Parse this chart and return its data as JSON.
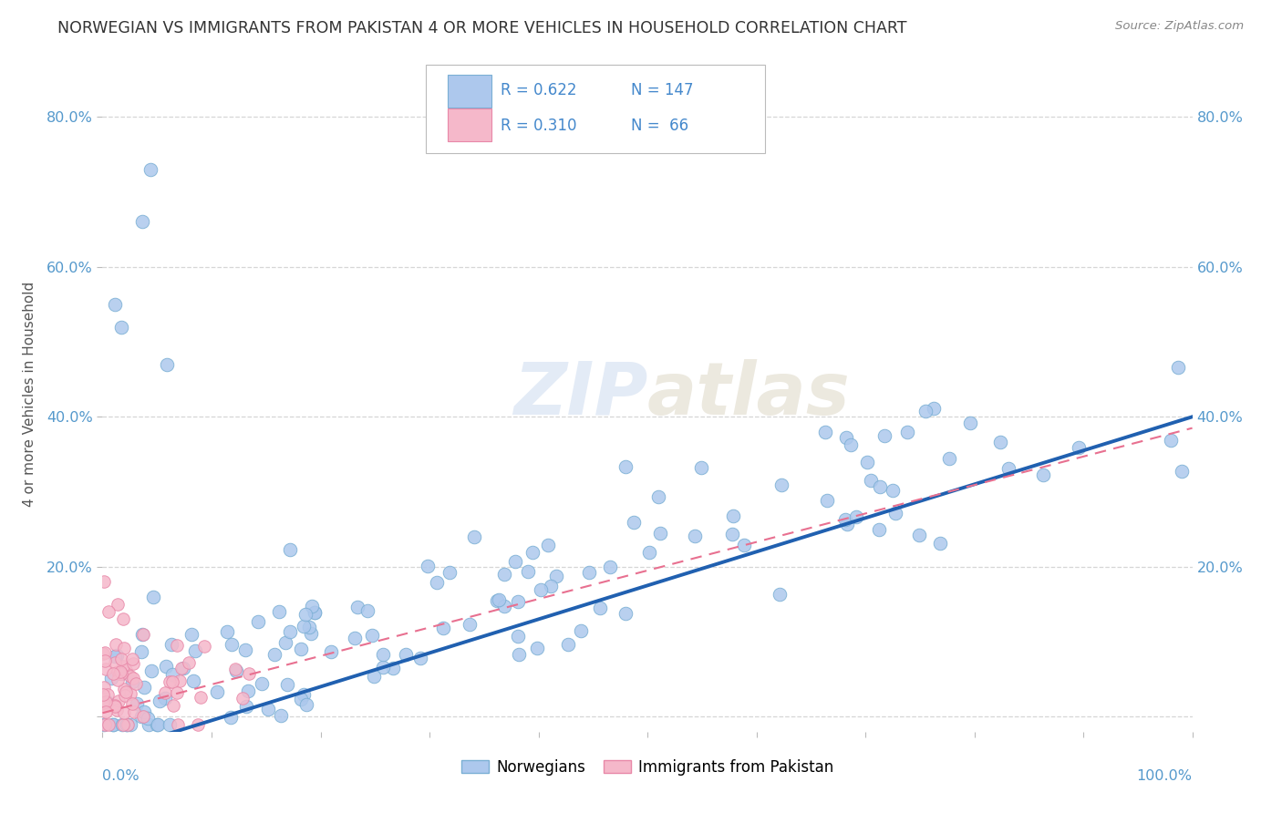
{
  "title": "NORWEGIAN VS IMMIGRANTS FROM PAKISTAN 4 OR MORE VEHICLES IN HOUSEHOLD CORRELATION CHART",
  "source": "Source: ZipAtlas.com",
  "ylabel": "4 or more Vehicles in Household",
  "xlim": [
    0.0,
    1.0
  ],
  "ylim": [
    -0.02,
    0.88
  ],
  "yticks": [
    0.0,
    0.2,
    0.4,
    0.6,
    0.8
  ],
  "ytick_labels": [
    "",
    "20.0%",
    "40.0%",
    "60.0%",
    "80.0%"
  ],
  "R_norwegian": 0.622,
  "N_norwegian": 147,
  "R_pakistan": 0.31,
  "N_pakistan": 66,
  "norwegian_color": "#adc8ed",
  "norwegian_edge": "#7aafd4",
  "pakistan_color": "#f5b8ca",
  "pakistan_edge": "#e888a8",
  "line_norwegian_color": "#2060b0",
  "line_pakistan_color": "#e87090",
  "watermark_color": "#c8d8ee",
  "background_color": "#ffffff",
  "grid_color": "#cccccc",
  "title_color": "#333333",
  "axis_label_color": "#5599cc",
  "legend_text_color": "#4488cc"
}
